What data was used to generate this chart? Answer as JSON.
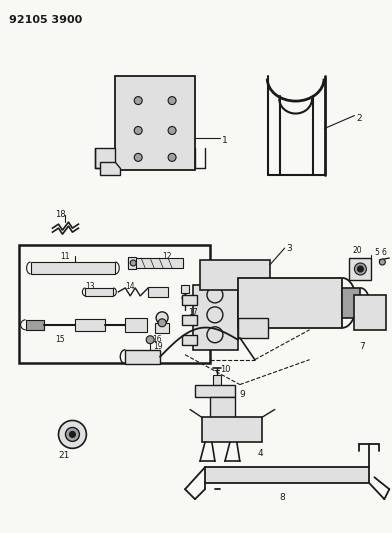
{
  "title": "92105 3900",
  "bg_color": "#f5f5f0",
  "line_color": "#1a1a1a",
  "fig_width": 3.92,
  "fig_height": 5.33,
  "dpi": 100,
  "gray_fill": "#c8c8c8",
  "light_gray": "#e0e0e0",
  "mid_gray": "#a0a0a0"
}
